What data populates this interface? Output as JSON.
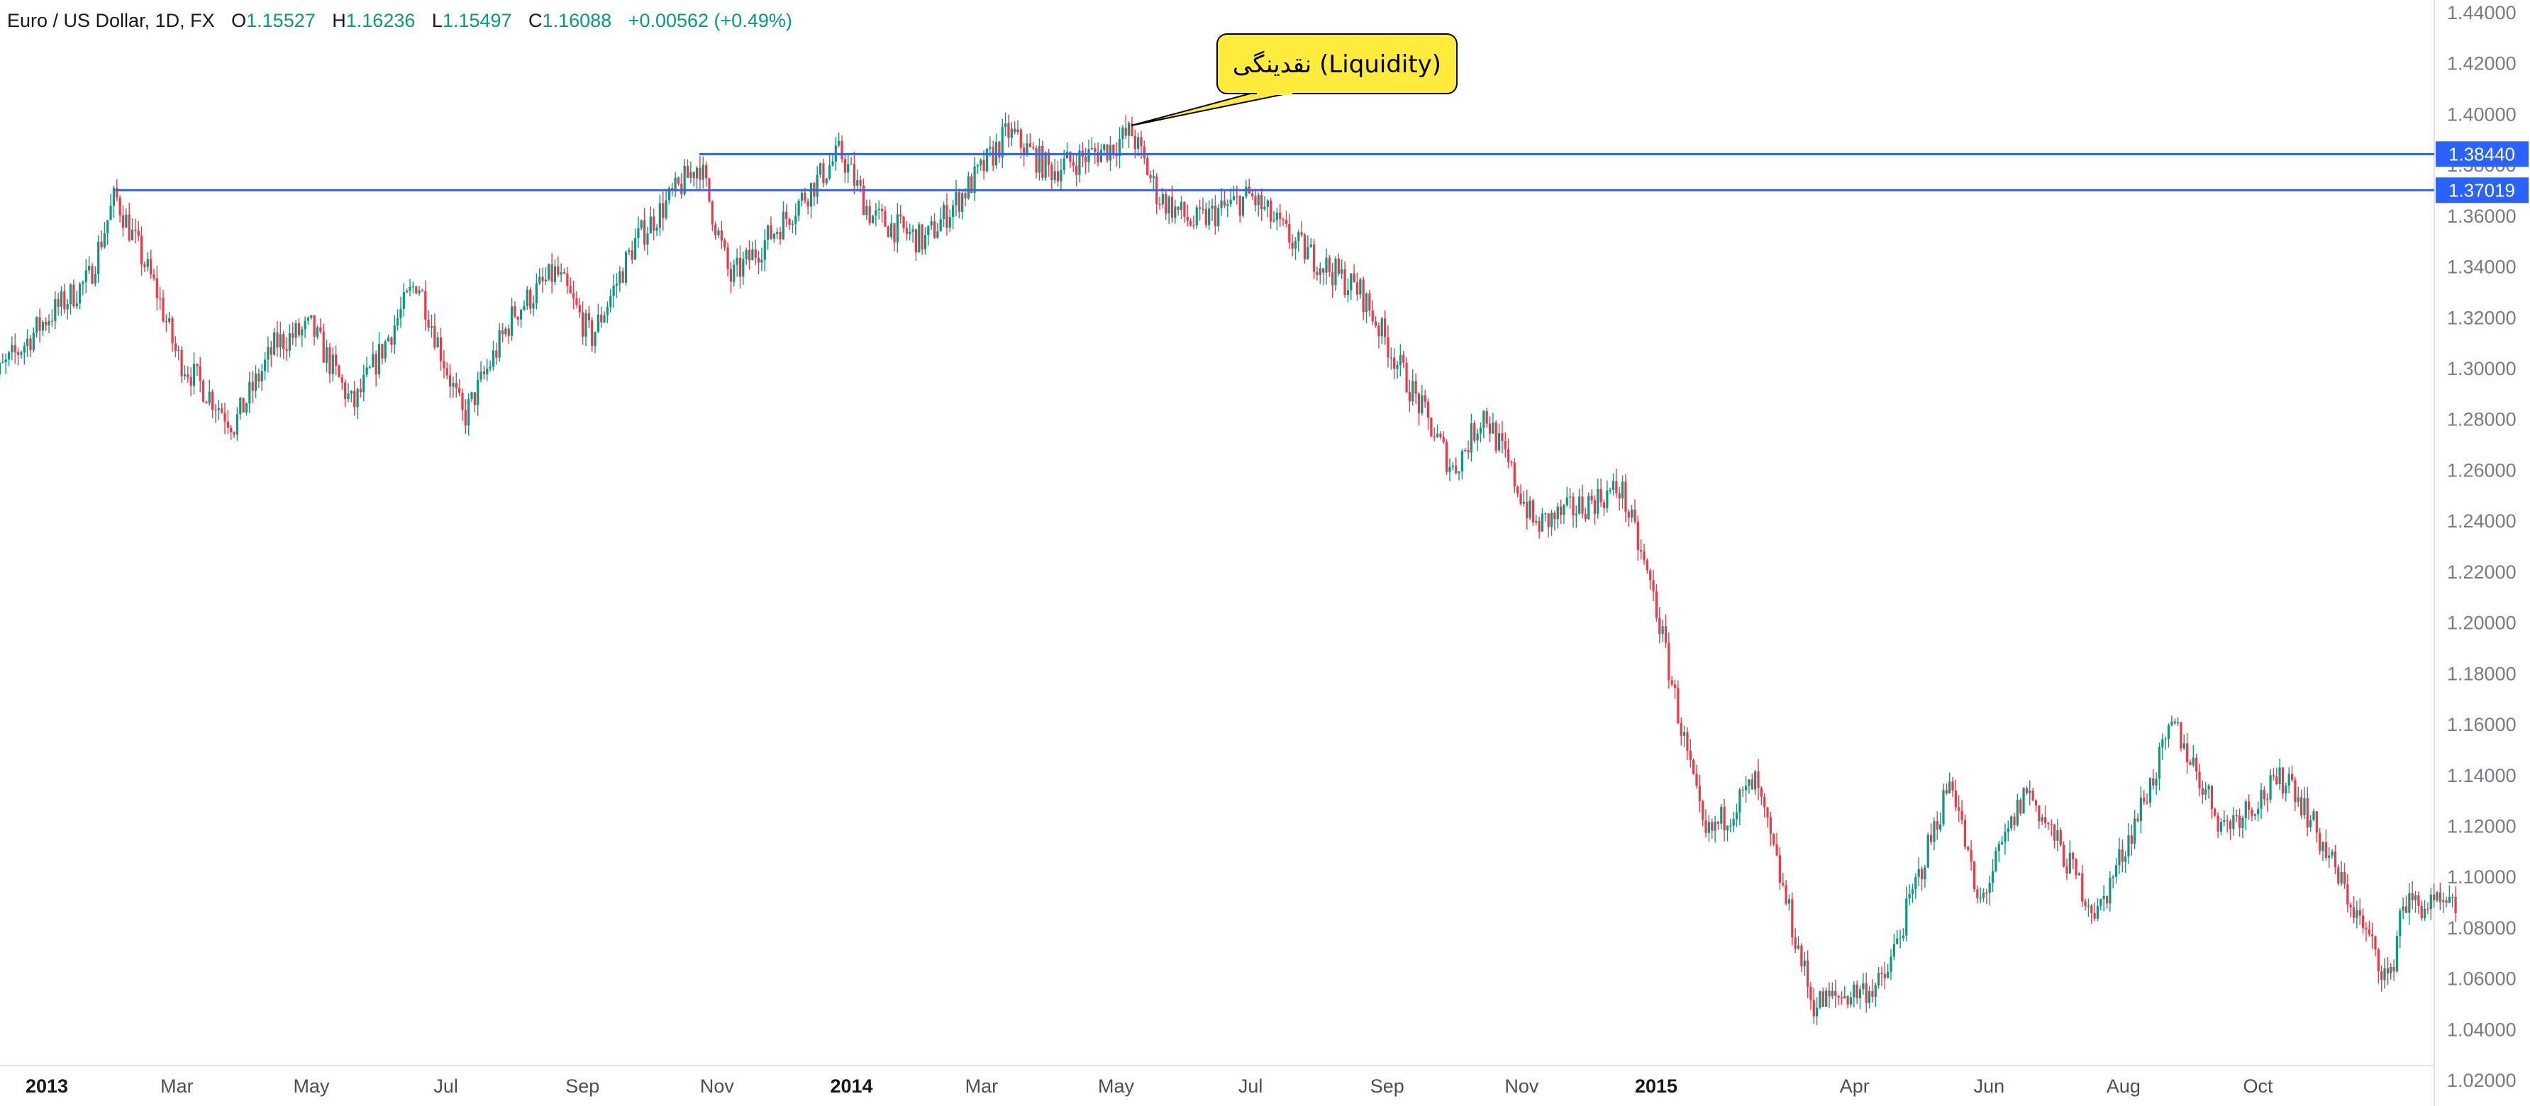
{
  "header": {
    "symbol": "Euro / US Dollar, 1D, FX",
    "ohlc": [
      {
        "label": "O",
        "value": "1.15527"
      },
      {
        "label": "H",
        "value": "1.16236"
      },
      {
        "label": "L",
        "value": "1.15497"
      },
      {
        "label": "C",
        "value": "1.16088"
      }
    ],
    "change": "+0.00562 (+0.49%)"
  },
  "colors": {
    "up": "#089981",
    "down": "#f23645",
    "line": "#2962ff",
    "callout_fill": "#ffeb3b",
    "text": "#131722",
    "axis_text": "#787b86"
  },
  "chart_data": {
    "type": "candlestick",
    "y_axis": {
      "min": 1.01,
      "max": 1.445,
      "ticks": [
        1.02,
        1.04,
        1.06,
        1.08,
        1.1,
        1.12,
        1.14,
        1.16,
        1.18,
        1.2,
        1.22,
        1.24,
        1.26,
        1.28,
        1.3,
        1.32,
        1.34,
        1.36,
        1.38,
        1.4,
        1.42,
        1.44
      ],
      "tick_labels": [
        "1.02000",
        "1.04000",
        "1.06000",
        "1.08000",
        "1.10000",
        "1.12000",
        "1.14000",
        "1.16000",
        "1.18000",
        "1.20000",
        "1.22000",
        "1.24000",
        "1.26000",
        "1.28000",
        "1.30000",
        "1.32000",
        "1.34000",
        "1.36000",
        "1.38000",
        "1.40000",
        "1.42000",
        "1.44000"
      ]
    },
    "x_axis": {
      "labels": [
        {
          "text": "2013",
          "date": "2013-01-01",
          "bold": true
        },
        {
          "text": "Mar",
          "date": "2013-03-01",
          "bold": false
        },
        {
          "text": "May",
          "date": "2013-05-01",
          "bold": false
        },
        {
          "text": "Jul",
          "date": "2013-07-01",
          "bold": false
        },
        {
          "text": "Sep",
          "date": "2013-09-01",
          "bold": false
        },
        {
          "text": "Nov",
          "date": "2013-11-01",
          "bold": false
        },
        {
          "text": "2014",
          "date": "2014-01-01",
          "bold": true
        },
        {
          "text": "Mar",
          "date": "2014-03-01",
          "bold": false
        },
        {
          "text": "May",
          "date": "2014-05-01",
          "bold": false
        },
        {
          "text": "Jul",
          "date": "2014-07-01",
          "bold": false
        },
        {
          "text": "Sep",
          "date": "2014-09-01",
          "bold": false
        },
        {
          "text": "Nov",
          "date": "2014-11-01",
          "bold": false
        },
        {
          "text": "2015",
          "date": "2015-01-01",
          "bold": true
        },
        {
          "text": "Apr",
          "date": "2015-04-01",
          "bold": false
        },
        {
          "text": "Jun",
          "date": "2015-06-01",
          "bold": false
        },
        {
          "text": "Aug",
          "date": "2015-08-01",
          "bold": false
        },
        {
          "text": "Oct",
          "date": "2015-10-01",
          "bold": false
        }
      ]
    },
    "price_path": [
      {
        "date": "2012-12-01",
        "close": 1.289
      },
      {
        "date": "2013-01-01",
        "close": 1.32
      },
      {
        "date": "2013-01-20",
        "close": 1.335
      },
      {
        "date": "2013-02-01",
        "close": 1.368
      },
      {
        "date": "2013-02-20",
        "close": 1.33
      },
      {
        "date": "2013-03-01",
        "close": 1.305
      },
      {
        "date": "2013-03-27",
        "close": 1.278
      },
      {
        "date": "2013-04-15",
        "close": 1.31
      },
      {
        "date": "2013-05-01",
        "close": 1.316
      },
      {
        "date": "2013-05-20",
        "close": 1.285
      },
      {
        "date": "2013-06-18",
        "close": 1.335
      },
      {
        "date": "2013-07-09",
        "close": 1.28
      },
      {
        "date": "2013-08-01",
        "close": 1.322
      },
      {
        "date": "2013-08-20",
        "close": 1.338
      },
      {
        "date": "2013-09-05",
        "close": 1.312
      },
      {
        "date": "2013-09-25",
        "close": 1.35
      },
      {
        "date": "2013-10-24",
        "close": 1.381
      },
      {
        "date": "2013-11-07",
        "close": 1.335
      },
      {
        "date": "2013-12-01",
        "close": 1.358
      },
      {
        "date": "2013-12-27",
        "close": 1.385
      },
      {
        "date": "2014-01-10",
        "close": 1.36
      },
      {
        "date": "2014-02-03",
        "close": 1.35
      },
      {
        "date": "2014-03-01",
        "close": 1.378
      },
      {
        "date": "2014-03-13",
        "close": 1.393
      },
      {
        "date": "2014-04-01",
        "close": 1.378
      },
      {
        "date": "2014-04-28",
        "close": 1.387
      },
      {
        "date": "2014-05-08",
        "close": 1.393
      },
      {
        "date": "2014-05-20",
        "close": 1.368
      },
      {
        "date": "2014-06-05",
        "close": 1.357
      },
      {
        "date": "2014-07-01",
        "close": 1.368
      },
      {
        "date": "2014-07-20",
        "close": 1.35
      },
      {
        "date": "2014-08-20",
        "close": 1.33
      },
      {
        "date": "2014-09-10",
        "close": 1.295
      },
      {
        "date": "2014-10-01",
        "close": 1.26
      },
      {
        "date": "2014-10-15",
        "close": 1.283
      },
      {
        "date": "2014-11-07",
        "close": 1.238
      },
      {
        "date": "2014-12-16",
        "close": 1.253
      },
      {
        "date": "2014-12-31",
        "close": 1.21
      },
      {
        "date": "2015-01-23",
        "close": 1.115
      },
      {
        "date": "2015-02-15",
        "close": 1.137
      },
      {
        "date": "2015-03-13",
        "close": 1.05
      },
      {
        "date": "2015-04-14",
        "close": 1.058
      },
      {
        "date": "2015-05-15",
        "close": 1.14
      },
      {
        "date": "2015-05-27",
        "close": 1.088
      },
      {
        "date": "2015-06-18",
        "close": 1.135
      },
      {
        "date": "2015-07-20",
        "close": 1.085
      },
      {
        "date": "2015-08-24",
        "close": 1.16
      },
      {
        "date": "2015-09-15",
        "close": 1.12
      },
      {
        "date": "2015-10-15",
        "close": 1.14
      },
      {
        "date": "2015-11-30",
        "close": 1.058
      },
      {
        "date": "2015-12-05",
        "close": 1.09
      },
      {
        "date": "2015-12-31",
        "close": 1.087
      }
    ],
    "horizontal_lines": [
      {
        "price": 1.3844,
        "label": "1.38440",
        "start_date": "2013-10-24"
      },
      {
        "price": 1.37019,
        "label": "1.37019",
        "start_date": "2013-02-01"
      }
    ],
    "annotation": {
      "text": "نقدینگی (Liquidity)",
      "anchor_date": "2014-05-08",
      "anchor_price": 1.399
    }
  }
}
